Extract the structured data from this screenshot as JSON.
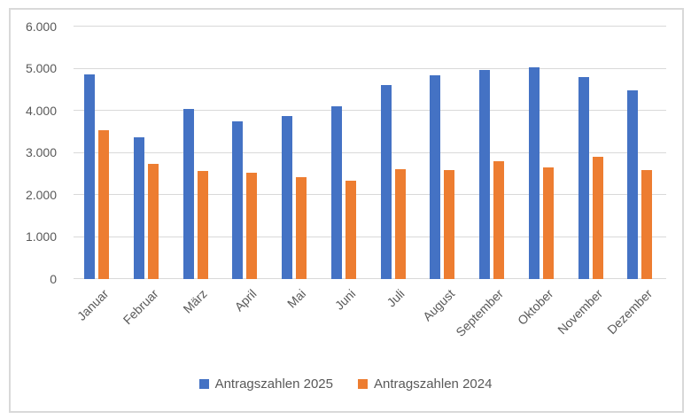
{
  "chart_data": {
    "type": "bar",
    "title": "",
    "categories": [
      "Januar",
      "Februar",
      "März",
      "April",
      "Mai",
      "Juni",
      "Juli",
      "August",
      "September",
      "Oktober",
      "November",
      "Dezember"
    ],
    "series": [
      {
        "name": "Antragszahlen 2025",
        "color": "#4472C4",
        "values": [
          4850,
          3360,
          4030,
          3740,
          3860,
          4090,
          4610,
          4830,
          4950,
          5030,
          4780,
          4480
        ]
      },
      {
        "name": "Antragszahlen 2024",
        "color": "#ED7D31",
        "values": [
          3530,
          2720,
          2570,
          2520,
          2410,
          2330,
          2610,
          2590,
          2800,
          2650,
          2890,
          2590
        ]
      }
    ],
    "y_axis": {
      "min": 0,
      "max": 6000,
      "step": 1000,
      "tick_labels": [
        "0",
        "1.000",
        "2.000",
        "3.000",
        "4.000",
        "5.000",
        "6.000"
      ]
    },
    "grid": true,
    "legend_position": "bottom",
    "colors": {
      "gridline": "#D9D9D9",
      "frame_border": "#D9D9D9",
      "axis_text": "#595959",
      "background": "#FFFFFF"
    }
  }
}
